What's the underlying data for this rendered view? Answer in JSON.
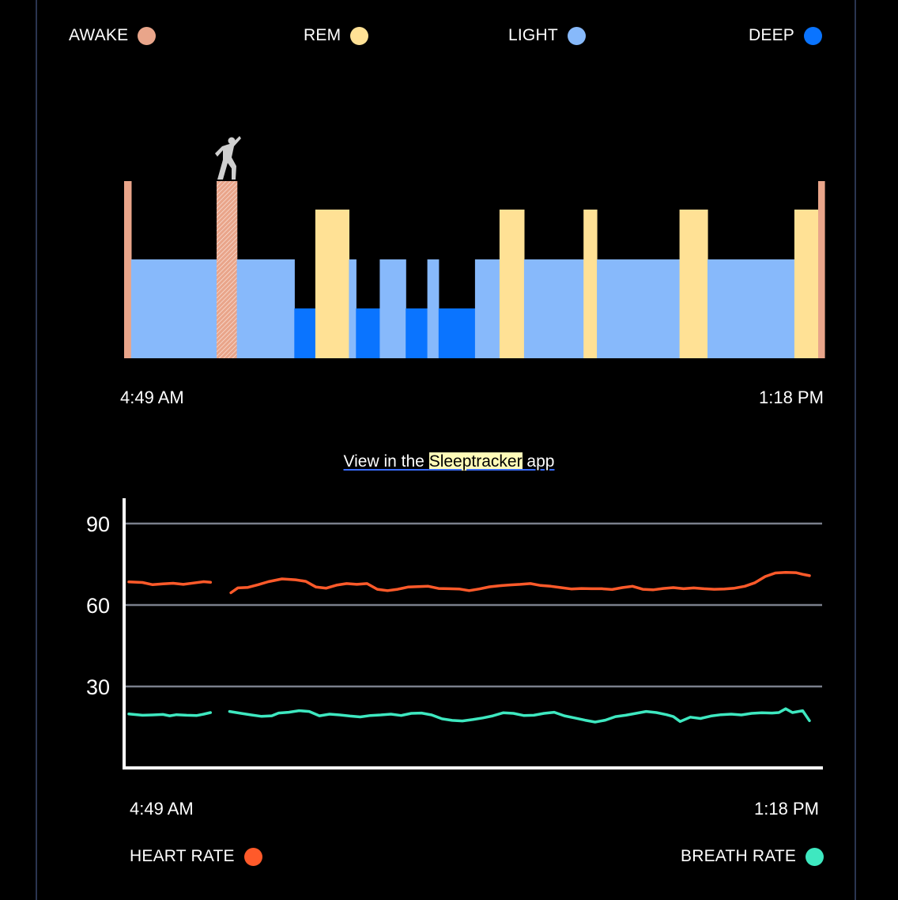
{
  "hypnogram": {
    "legend": [
      {
        "label": "AWAKE",
        "color": "#e9a58a"
      },
      {
        "label": "REM",
        "color": "#ffe195"
      },
      {
        "label": "LIGHT",
        "color": "#87b9fb"
      },
      {
        "label": "DEEP",
        "color": "#0a74ff"
      }
    ],
    "start_time": "4:49 AM",
    "end_time": "1:18 PM"
  },
  "link": {
    "prefix": "View in the ",
    "app_name": "Sleeptracker",
    "suffix": " app"
  },
  "vitals": {
    "start_time": "4:49 AM",
    "end_time": "1:18 PM",
    "legend": [
      {
        "label": "HEART RATE",
        "color": "#ff5a2a"
      },
      {
        "label": "BREATH RATE",
        "color": "#3ee8c0"
      }
    ]
  },
  "chart_data": [
    {
      "type": "bar",
      "x_range": [
        "4:49 AM",
        "1:18 PM"
      ],
      "stages": [
        "AWAKE",
        "REM",
        "LIGHT",
        "DEEP"
      ],
      "segments": [
        {
          "stage": "AWAKE",
          "start": 0.0,
          "end": 0.01
        },
        {
          "stage": "LIGHT",
          "start": 0.01,
          "end": 0.132
        },
        {
          "stage": "AWAKE",
          "start": 0.132,
          "end": 0.161,
          "marker": "wake-event"
        },
        {
          "stage": "LIGHT",
          "start": 0.161,
          "end": 0.243
        },
        {
          "stage": "DEEP",
          "start": 0.243,
          "end": 0.273
        },
        {
          "stage": "REM",
          "start": 0.273,
          "end": 0.321
        },
        {
          "stage": "LIGHT",
          "start": 0.321,
          "end": 0.331
        },
        {
          "stage": "DEEP",
          "start": 0.331,
          "end": 0.365
        },
        {
          "stage": "LIGHT",
          "start": 0.365,
          "end": 0.402
        },
        {
          "stage": "DEEP",
          "start": 0.402,
          "end": 0.433
        },
        {
          "stage": "LIGHT",
          "start": 0.433,
          "end": 0.449
        },
        {
          "stage": "DEEP",
          "start": 0.449,
          "end": 0.501
        },
        {
          "stage": "LIGHT",
          "start": 0.501,
          "end": 0.536
        },
        {
          "stage": "REM",
          "start": 0.536,
          "end": 0.571
        },
        {
          "stage": "LIGHT",
          "start": 0.571,
          "end": 0.656
        },
        {
          "stage": "REM",
          "start": 0.656,
          "end": 0.675
        },
        {
          "stage": "LIGHT",
          "start": 0.675,
          "end": 0.793
        },
        {
          "stage": "REM",
          "start": 0.793,
          "end": 0.833
        },
        {
          "stage": "LIGHT",
          "start": 0.833,
          "end": 0.957
        },
        {
          "stage": "REM",
          "start": 0.957,
          "end": 0.991
        },
        {
          "stage": "AWAKE",
          "start": 0.991,
          "end": 1.0
        }
      ]
    },
    {
      "type": "line",
      "y_ticks": [
        30,
        60,
        90
      ],
      "ylim": [
        0,
        100
      ],
      "grid": true,
      "x_range": [
        "4:49 AM",
        "1:18 PM"
      ],
      "series": [
        {
          "name": "HEART RATE",
          "color": "#ff5a2a",
          "segments": [
            [
              [
                0,
                68.5
              ],
              [
                0.02,
                68.3
              ],
              [
                0.035,
                67.5
              ],
              [
                0.05,
                67.8
              ],
              [
                0.065,
                68
              ],
              [
                0.08,
                67.6
              ],
              [
                0.095,
                68.1
              ],
              [
                0.11,
                68.6
              ],
              [
                0.12,
                68.4
              ]
            ],
            [
              [
                0.15,
                64.5
              ],
              [
                0.16,
                66.3
              ],
              [
                0.175,
                66.5
              ],
              [
                0.19,
                67.5
              ],
              [
                0.205,
                68.6
              ],
              [
                0.225,
                69.6
              ],
              [
                0.245,
                69.3
              ],
              [
                0.26,
                68.7
              ],
              [
                0.275,
                66.6
              ],
              [
                0.29,
                66.2
              ],
              [
                0.305,
                67.3
              ],
              [
                0.32,
                67.9
              ],
              [
                0.335,
                67.6
              ],
              [
                0.35,
                67.9
              ],
              [
                0.365,
                65.8
              ],
              [
                0.38,
                65.3
              ],
              [
                0.395,
                65.8
              ],
              [
                0.41,
                66.6
              ],
              [
                0.425,
                66.8
              ],
              [
                0.44,
                66.9
              ],
              [
                0.455,
                66.1
              ],
              [
                0.47,
                66
              ],
              [
                0.485,
                65.9
              ],
              [
                0.5,
                65.3
              ],
              [
                0.515,
                65.9
              ],
              [
                0.53,
                66.7
              ],
              [
                0.545,
                67.1
              ],
              [
                0.56,
                67.4
              ],
              [
                0.575,
                67.6
              ],
              [
                0.59,
                67.9
              ],
              [
                0.605,
                67.2
              ],
              [
                0.62,
                66.9
              ],
              [
                0.635,
                66.4
              ],
              [
                0.65,
                65.9
              ],
              [
                0.665,
                66.1
              ],
              [
                0.68,
                66
              ],
              [
                0.695,
                66
              ],
              [
                0.71,
                65.7
              ],
              [
                0.725,
                66.4
              ],
              [
                0.74,
                66.9
              ],
              [
                0.755,
                65.8
              ],
              [
                0.77,
                65.6
              ],
              [
                0.785,
                66.1
              ],
              [
                0.8,
                66.4
              ],
              [
                0.815,
                66
              ],
              [
                0.83,
                66.3
              ],
              [
                0.845,
                66
              ],
              [
                0.86,
                65.8
              ],
              [
                0.875,
                65.9
              ],
              [
                0.89,
                66.2
              ],
              [
                0.905,
                66.9
              ],
              [
                0.92,
                68.2
              ],
              [
                0.935,
                70.5
              ],
              [
                0.95,
                71.8
              ],
              [
                0.965,
                72
              ],
              [
                0.98,
                71.9
              ],
              [
                0.99,
                71.3
              ],
              [
                1,
                70.8
              ]
            ]
          ]
        },
        {
          "name": "BREATH RATE",
          "color": "#3ee8c0",
          "segments": [
            [
              [
                0,
                19.9
              ],
              [
                0.02,
                19.4
              ],
              [
                0.035,
                19.5
              ],
              [
                0.05,
                19.7
              ],
              [
                0.06,
                19.2
              ],
              [
                0.07,
                19.6
              ],
              [
                0.085,
                19.4
              ],
              [
                0.1,
                19.3
              ],
              [
                0.11,
                19.8
              ],
              [
                0.12,
                20.4
              ]
            ],
            [
              [
                0.148,
                20.8
              ],
              [
                0.165,
                20.1
              ],
              [
                0.18,
                19.5
              ],
              [
                0.195,
                19
              ],
              [
                0.21,
                19.2
              ],
              [
                0.22,
                20.2
              ],
              [
                0.235,
                20.5
              ],
              [
                0.25,
                21.1
              ],
              [
                0.265,
                20.8
              ],
              [
                0.28,
                19.2
              ],
              [
                0.295,
                19.8
              ],
              [
                0.31,
                19.5
              ],
              [
                0.325,
                19.1
              ],
              [
                0.34,
                18.8
              ],
              [
                0.355,
                19.3
              ],
              [
                0.37,
                19.5
              ],
              [
                0.385,
                19.8
              ],
              [
                0.4,
                19.3
              ],
              [
                0.415,
                20.1
              ],
              [
                0.43,
                20.2
              ],
              [
                0.445,
                19.5
              ],
              [
                0.46,
                18.1
              ],
              [
                0.475,
                17.5
              ],
              [
                0.49,
                17.3
              ],
              [
                0.505,
                17.8
              ],
              [
                0.52,
                18.4
              ],
              [
                0.535,
                19.2
              ],
              [
                0.55,
                20.3
              ],
              [
                0.565,
                20.1
              ],
              [
                0.58,
                19.3
              ],
              [
                0.595,
                19.4
              ],
              [
                0.61,
                20.1
              ],
              [
                0.625,
                20.5
              ],
              [
                0.64,
                19.2
              ],
              [
                0.655,
                18.4
              ],
              [
                0.67,
                17.6
              ],
              [
                0.685,
                16.9
              ],
              [
                0.7,
                17.6
              ],
              [
                0.715,
                18.9
              ],
              [
                0.73,
                19.4
              ],
              [
                0.745,
                20.1
              ],
              [
                0.76,
                20.8
              ],
              [
                0.775,
                20.4
              ],
              [
                0.79,
                19.6
              ],
              [
                0.8,
                18.9
              ],
              [
                0.81,
                17.1
              ],
              [
                0.825,
                18.7
              ],
              [
                0.84,
                18.2
              ],
              [
                0.855,
                19.1
              ],
              [
                0.87,
                19.6
              ],
              [
                0.885,
                19.8
              ],
              [
                0.9,
                19.5
              ],
              [
                0.915,
                20.1
              ],
              [
                0.93,
                20.3
              ],
              [
                0.945,
                20.2
              ],
              [
                0.955,
                20.4
              ],
              [
                0.965,
                21.8
              ],
              [
                0.975,
                20.4
              ],
              [
                0.99,
                21.1
              ],
              [
                1,
                17.4
              ]
            ]
          ]
        }
      ]
    }
  ]
}
